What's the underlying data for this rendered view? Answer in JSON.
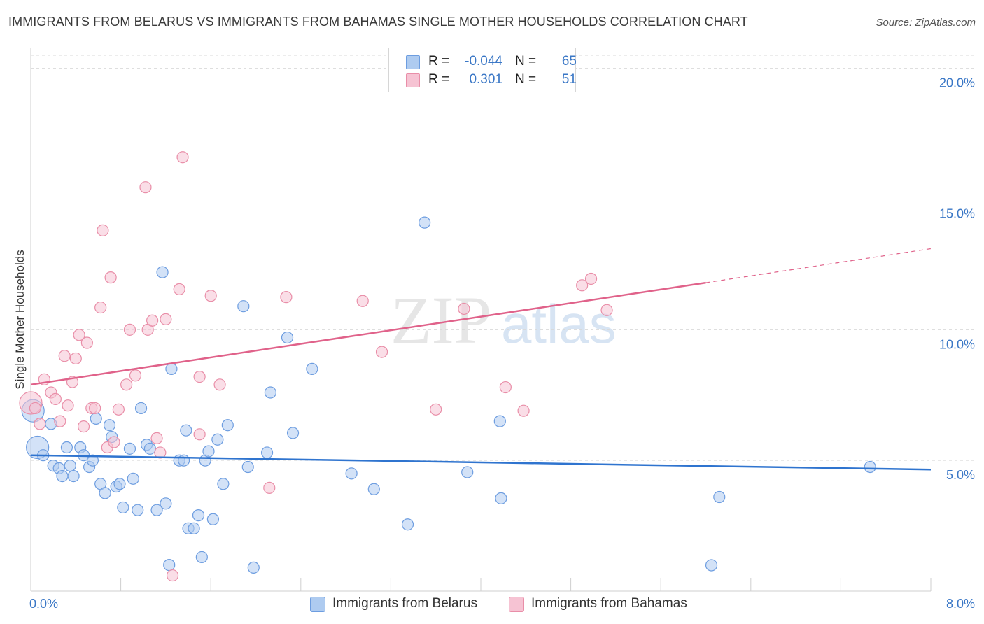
{
  "title": "IMMIGRANTS FROM BELARUS VS IMMIGRANTS FROM BAHAMAS SINGLE MOTHER HOUSEHOLDS CORRELATION CHART",
  "source": "Source: ZipAtlas.com",
  "watermark": {
    "zip": "ZIP",
    "atlas": "atlas"
  },
  "legend": {
    "r_label": "R =",
    "n_label": "N =",
    "rows": [
      {
        "r": "-0.044",
        "n": "65"
      },
      {
        "r": "0.301",
        "n": "51"
      }
    ]
  },
  "bottom_legend": [
    "Immigrants from Belarus",
    "Immigrants from Bahamas"
  ],
  "colors": {
    "belarus_fill": "#aecbf0",
    "belarus_stroke": "#6d9de0",
    "belarus_line": "#2f74cf",
    "bahamas_fill": "#f6c3d3",
    "bahamas_stroke": "#e98ea8",
    "bahamas_line": "#e0628a",
    "tick": "#3a77c6",
    "grid": "#d9d9d9"
  },
  "chart_data": {
    "type": "scatter",
    "title": "IMMIGRANTS FROM BELARUS VS IMMIGRANTS FROM BAHAMAS SINGLE MOTHER HOUSEHOLDS CORRELATION CHART",
    "xlabel": "",
    "ylabel": "Single Mother Households",
    "xlim": [
      0,
      8
    ],
    "ylim": [
      0,
      20.5
    ],
    "x_tick_labels": [
      "0.0%",
      "8.0%"
    ],
    "y_ticks": [
      5,
      10,
      15,
      20
    ],
    "y_tick_labels": [
      "5.0%",
      "10.0%",
      "15.0%",
      "20.0%"
    ],
    "series": [
      {
        "name": "Immigrants from Belarus",
        "trend": {
          "x0": 0,
          "y0": 5.2,
          "x1": 8,
          "y1": 4.65
        },
        "points": [
          [
            0.02,
            6.9,
            "large"
          ],
          [
            0.06,
            5.5,
            "large"
          ],
          [
            0.18,
            6.4
          ],
          [
            0.11,
            5.2
          ],
          [
            0.2,
            4.8
          ],
          [
            0.25,
            4.7
          ],
          [
            0.28,
            4.4
          ],
          [
            0.32,
            5.5
          ],
          [
            0.35,
            4.8
          ],
          [
            0.38,
            4.4
          ],
          [
            0.44,
            5.5
          ],
          [
            0.47,
            5.2
          ],
          [
            0.52,
            4.75
          ],
          [
            0.55,
            5.0
          ],
          [
            0.58,
            6.6
          ],
          [
            0.62,
            4.1
          ],
          [
            0.66,
            3.75
          ],
          [
            0.7,
            6.35
          ],
          [
            0.72,
            5.9
          ],
          [
            0.76,
            4.0
          ],
          [
            0.79,
            4.1
          ],
          [
            0.82,
            3.2
          ],
          [
            0.88,
            5.45
          ],
          [
            0.91,
            4.3
          ],
          [
            0.95,
            3.1
          ],
          [
            0.98,
            7.0
          ],
          [
            1.03,
            5.6
          ],
          [
            1.06,
            5.45
          ],
          [
            1.12,
            3.1
          ],
          [
            1.17,
            12.2
          ],
          [
            1.2,
            3.35
          ],
          [
            1.25,
            8.5
          ],
          [
            1.32,
            5.0
          ],
          [
            1.36,
            5.0
          ],
          [
            1.38,
            6.15
          ],
          [
            1.4,
            2.4
          ],
          [
            1.45,
            2.4
          ],
          [
            1.49,
            2.9
          ],
          [
            1.52,
            1.3
          ],
          [
            1.55,
            5.0
          ],
          [
            1.58,
            5.35
          ],
          [
            1.62,
            2.75
          ],
          [
            1.66,
            5.8
          ],
          [
            1.71,
            4.1
          ],
          [
            1.75,
            6.35
          ],
          [
            1.89,
            10.9
          ],
          [
            1.93,
            4.75
          ],
          [
            1.98,
            0.9
          ],
          [
            2.1,
            5.3
          ],
          [
            2.13,
            7.6
          ],
          [
            2.28,
            9.7
          ],
          [
            2.33,
            6.05
          ],
          [
            2.5,
            8.5
          ],
          [
            2.85,
            4.5
          ],
          [
            3.05,
            3.9
          ],
          [
            3.35,
            2.55
          ],
          [
            3.5,
            14.1
          ],
          [
            3.88,
            4.55
          ],
          [
            4.17,
            6.5
          ],
          [
            4.18,
            3.55
          ],
          [
            6.05,
            0.99
          ],
          [
            6.12,
            3.6
          ],
          [
            7.46,
            4.75
          ],
          [
            1.23,
            1.0
          ]
        ]
      },
      {
        "name": "Immigrants from Bahamas",
        "trend": {
          "x0": 0,
          "y0": 7.9,
          "x1": 6.0,
          "y1": 11.8,
          "dash_x1": 8,
          "dash_y1": 13.1
        },
        "points": [
          [
            0.0,
            7.2,
            "large"
          ],
          [
            0.04,
            7.0
          ],
          [
            0.08,
            6.4
          ],
          [
            0.12,
            8.1
          ],
          [
            0.18,
            7.6
          ],
          [
            0.22,
            7.35
          ],
          [
            0.26,
            6.5
          ],
          [
            0.3,
            9.0
          ],
          [
            0.33,
            7.1
          ],
          [
            0.37,
            8.0
          ],
          [
            0.4,
            8.9
          ],
          [
            0.43,
            9.8
          ],
          [
            0.47,
            6.3
          ],
          [
            0.5,
            9.5
          ],
          [
            0.54,
            7.0
          ],
          [
            0.57,
            7.0
          ],
          [
            0.62,
            10.85
          ],
          [
            0.64,
            13.8
          ],
          [
            0.68,
            5.5
          ],
          [
            0.71,
            12.0
          ],
          [
            0.74,
            5.7
          ],
          [
            0.78,
            6.95
          ],
          [
            0.85,
            7.9
          ],
          [
            0.88,
            10.0
          ],
          [
            0.93,
            8.25
          ],
          [
            1.02,
            15.45
          ],
          [
            1.04,
            10.0
          ],
          [
            1.08,
            10.35
          ],
          [
            1.12,
            5.85
          ],
          [
            1.15,
            5.3
          ],
          [
            1.2,
            10.4
          ],
          [
            1.26,
            0.6
          ],
          [
            1.32,
            11.55
          ],
          [
            1.35,
            16.6
          ],
          [
            1.5,
            8.2
          ],
          [
            1.5,
            6.0
          ],
          [
            1.6,
            11.3
          ],
          [
            1.68,
            7.9
          ],
          [
            2.12,
            3.95
          ],
          [
            2.27,
            11.25
          ],
          [
            2.95,
            11.1
          ],
          [
            3.12,
            9.15
          ],
          [
            3.6,
            6.95
          ],
          [
            3.85,
            10.8
          ],
          [
            4.22,
            7.8
          ],
          [
            4.38,
            6.9
          ],
          [
            4.9,
            11.7
          ],
          [
            4.98,
            11.95
          ],
          [
            5.12,
            10.75
          ]
        ]
      }
    ]
  }
}
